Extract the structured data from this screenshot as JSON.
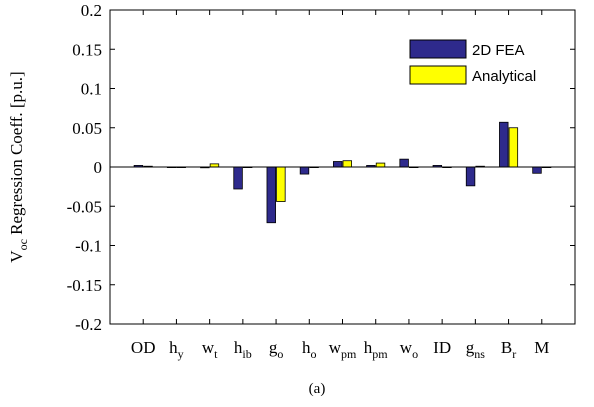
{
  "chart_data": {
    "type": "bar",
    "categories": [
      {
        "base": "OD",
        "sub": ""
      },
      {
        "base": "h",
        "sub": "y"
      },
      {
        "base": "w",
        "sub": "t"
      },
      {
        "base": "h",
        "sub": "ib"
      },
      {
        "base": "g",
        "sub": "o"
      },
      {
        "base": "h",
        "sub": "o"
      },
      {
        "base": "w",
        "sub": "pm"
      },
      {
        "base": "h",
        "sub": "pm"
      },
      {
        "base": "w",
        "sub": "o"
      },
      {
        "base": "ID",
        "sub": ""
      },
      {
        "base": "g",
        "sub": "ns"
      },
      {
        "base": "B",
        "sub": "r"
      },
      {
        "base": "M",
        "sub": ""
      }
    ],
    "series": [
      {
        "name": "2D FEA",
        "color": "#2e2a8c",
        "values": [
          0.002,
          0.0,
          -0.001,
          -0.028,
          -0.071,
          -0.009,
          0.007,
          0.002,
          0.01,
          0.002,
          -0.024,
          0.057,
          -0.008
        ]
      },
      {
        "name": "Analytical",
        "color": "#ffff00",
        "values": [
          0.001,
          0.0,
          0.004,
          0.0,
          -0.044,
          0.0,
          0.008,
          0.005,
          0.0,
          0.0,
          0.001,
          0.05,
          0.0
        ]
      }
    ],
    "ylabel": {
      "base": "V",
      "sub": "oc",
      "rest": " Regression Coeff. [p.u.]"
    },
    "ylim": [
      -0.2,
      0.2
    ],
    "yticks": [
      -0.2,
      -0.15,
      -0.1,
      -0.05,
      0,
      0.05,
      0.1,
      0.15,
      0.2
    ],
    "ytick_labels": [
      "-0.2",
      "-0.15",
      "-0.1",
      "-0.05",
      "0",
      "0.05",
      "0.1",
      "0.15",
      "0.2"
    ],
    "legend": {
      "position": "top-right"
    },
    "grid": false,
    "caption": "(a)"
  }
}
